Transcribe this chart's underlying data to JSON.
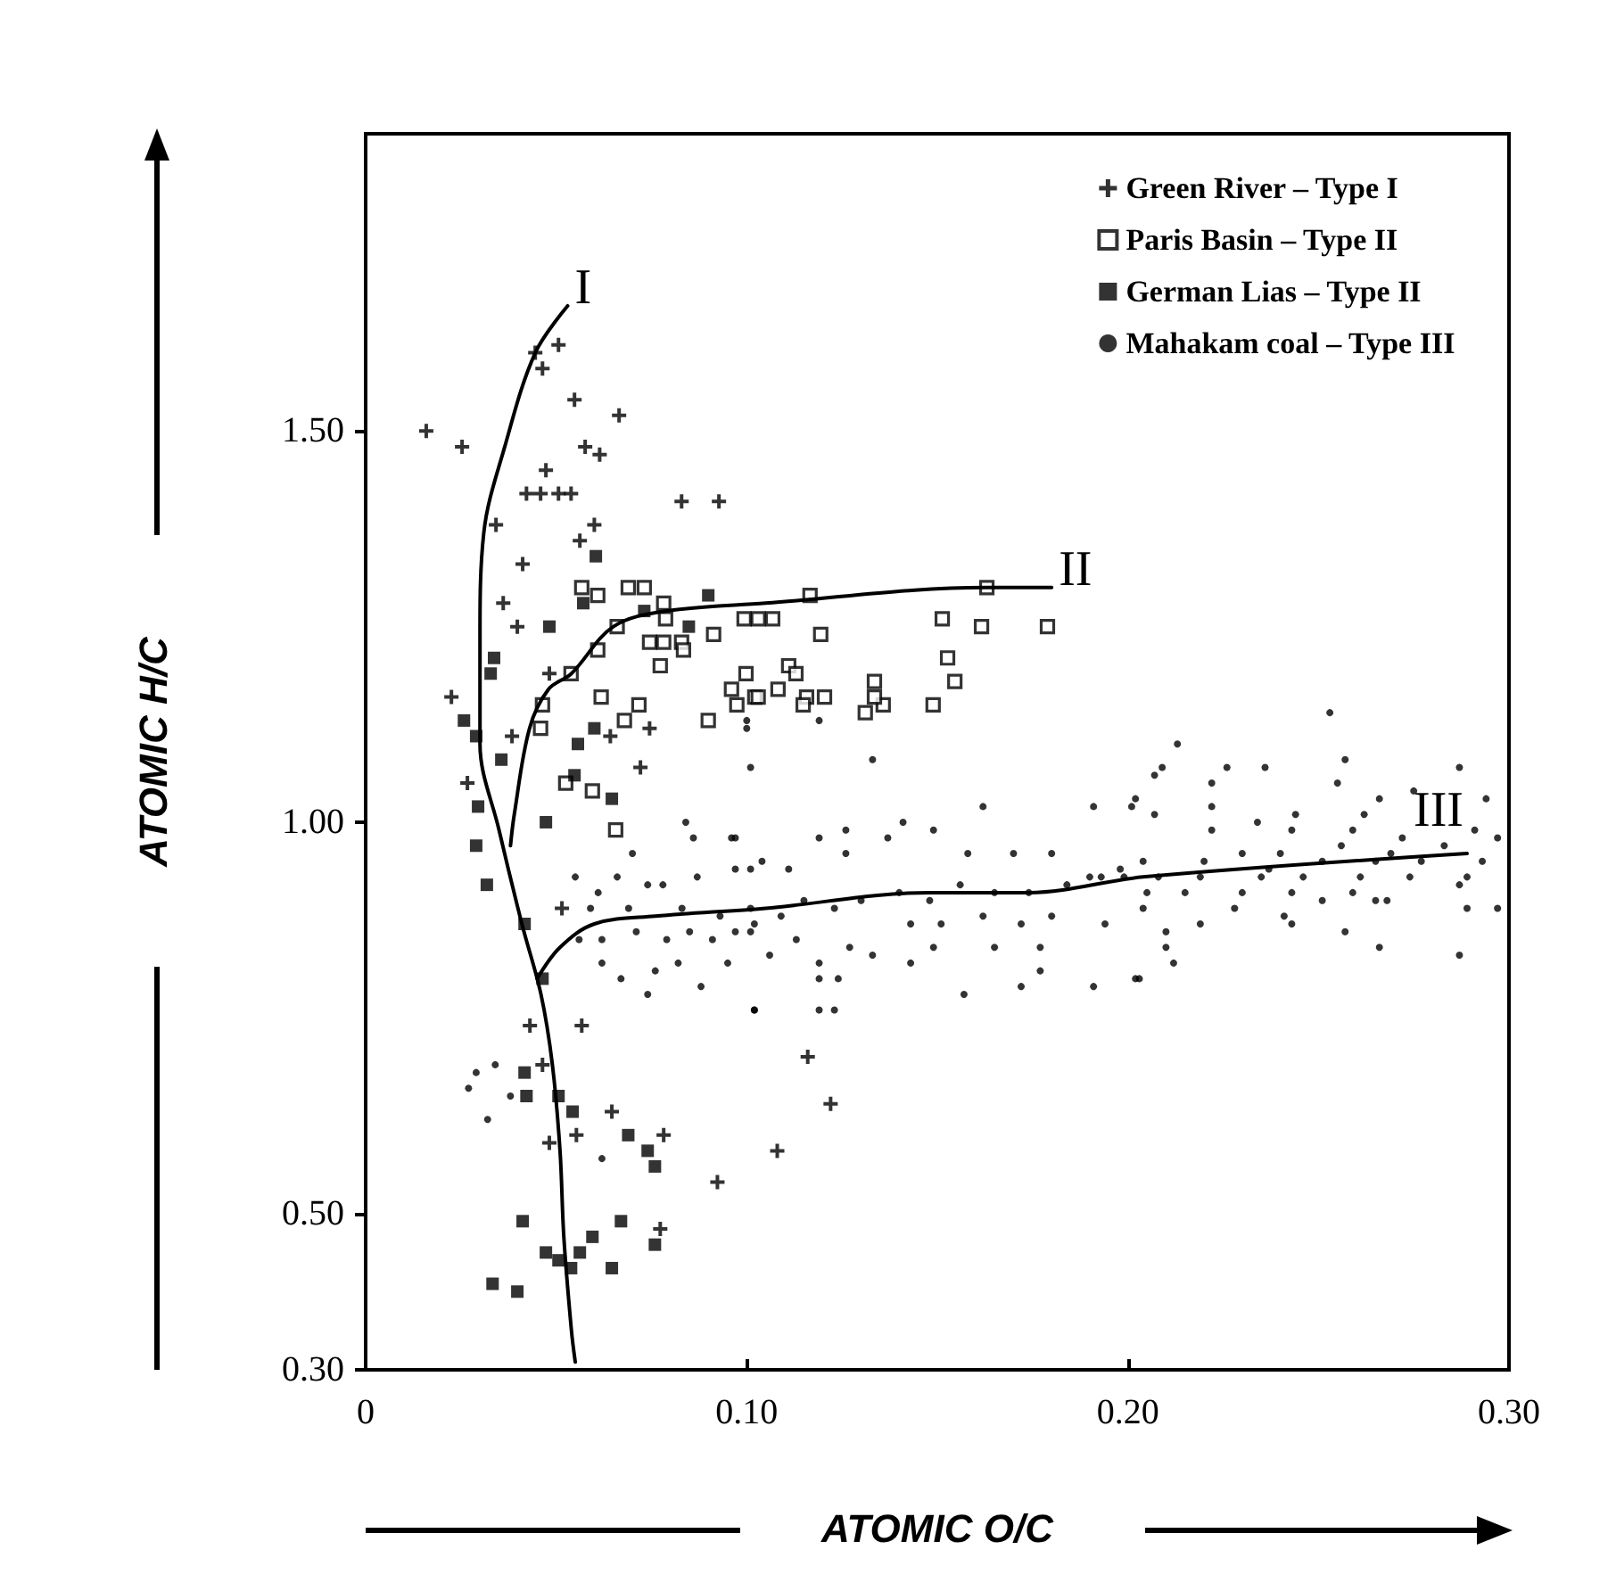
{
  "chart_data": {
    "type": "scatter",
    "xlabel": "ATOMIC O/C",
    "ylabel": "ATOMIC H/C",
    "xlim": [
      0,
      0.3
    ],
    "ylim": [
      0.3,
      1.88
    ],
    "xticks": [
      0,
      {
        "value": 0.1,
        "label": "0.10"
      },
      {
        "value": 0.2,
        "label": "0.20"
      },
      {
        "value": 0.3,
        "label": "0.30"
      }
    ],
    "yticks": [
      {
        "value": 0.3,
        "label": "0.30"
      },
      {
        "value": 0.5,
        "label": "0.50"
      },
      {
        "value": 1,
        "label": "1.00"
      },
      {
        "value": 1.5,
        "label": "1.50"
      }
    ],
    "grid": false,
    "legend": "top right",
    "series": [
      {
        "name": "Green River – Type I",
        "color": "#000000",
        "marker": "cross",
        "x": [
          0.0506,
          0.0464,
          0.0445,
          0.0548,
          0.0665,
          0.0159,
          0.0253,
          0.0576,
          0.0614,
          0.0473,
          0.0422,
          0.0459,
          0.0506,
          0.0539,
          0.0829,
          0.0927,
          0.0342,
          0.06,
          0.0562,
          0.0412,
          0.0361,
          0.0398,
          0.0482,
          0.0225,
          0.0384,
          0.0642,
          0.0745,
          0.0721,
          0.0267,
          0.0515,
          0.0567,
          0.0431,
          0.0646,
          0.0553,
          0.0782,
          0.0482,
          0.0923,
          0.0773,
          0.0464,
          0.116,
          0.122,
          0.108
        ],
        "values": [
          1.61,
          1.58,
          1.6,
          1.54,
          1.52,
          1.5,
          1.48,
          1.48,
          1.47,
          1.45,
          1.42,
          1.42,
          1.42,
          1.42,
          1.41,
          1.41,
          1.38,
          1.38,
          1.36,
          1.33,
          1.28,
          1.25,
          1.19,
          1.16,
          1.11,
          1.11,
          1.12,
          1.07,
          1.05,
          0.89,
          0.74,
          0.74,
          0.63,
          0.6,
          0.6,
          0.59,
          0.54,
          0.48,
          0.69,
          0.7,
          0.64,
          0.58
        ]
      },
      {
        "name": "Paris Basin – Type II",
        "color": "#000000",
        "marker": "square-open",
        "x": [
          0.0567,
          0.0609,
          0.0689,
          0.0731,
          0.0782,
          0.066,
          0.0787,
          0.0745,
          0.0782,
          0.0829,
          0.0913,
          0.0834,
          0.0773,
          0.0609,
          0.0539,
          0.0464,
          0.0459,
          0.0618,
          0.0717,
          0.0679,
          0.0899,
          0.096,
          0.0998,
          0.1021,
          0.0525,
          0.0595,
          0.0656,
          0.1166,
          0.163,
          0.0993,
          0.103,
          0.1068,
          0.1194,
          0.1513,
          0.1616,
          0.1789,
          0.111,
          0.1129,
          0.1527,
          0.1546,
          0.1335,
          0.103,
          0.1082,
          0.1157,
          0.1204,
          0.1148,
          0.1311,
          0.1358,
          0.1335,
          0.1489,
          0.0974
        ],
        "values": [
          1.3,
          1.29,
          1.3,
          1.3,
          1.28,
          1.25,
          1.26,
          1.23,
          1.23,
          1.23,
          1.24,
          1.22,
          1.2,
          1.22,
          1.19,
          1.15,
          1.12,
          1.16,
          1.15,
          1.13,
          1.13,
          1.17,
          1.19,
          1.16,
          1.05,
          1.04,
          0.99,
          1.29,
          1.3,
          1.26,
          1.26,
          1.26,
          1.24,
          1.26,
          1.25,
          1.25,
          1.2,
          1.19,
          1.21,
          1.18,
          1.18,
          1.16,
          1.17,
          1.16,
          1.16,
          1.15,
          1.14,
          1.15,
          1.16,
          1.15,
          1.15
        ]
      },
      {
        "name": "German Lias – Type II",
        "color": "#000000",
        "marker": "square",
        "x": [
          0.0604,
          0.0571,
          0.0482,
          0.0731,
          0.0899,
          0.0848,
          0.0337,
          0.0328,
          0.0258,
          0.029,
          0.06,
          0.0557,
          0.0356,
          0.0548,
          0.0646,
          0.0295,
          0.0473,
          0.029,
          0.0318,
          0.0417,
          0.0464,
          0.0417,
          0.0422,
          0.0506,
          0.0543,
          0.0689,
          0.074,
          0.0759,
          0.0412,
          0.067,
          0.0595,
          0.0473,
          0.0562,
          0.0539,
          0.0646,
          0.0759,
          0.0333,
          0.0398,
          0.0506
        ],
        "values": [
          1.34,
          1.28,
          1.25,
          1.27,
          1.29,
          1.25,
          1.21,
          1.19,
          1.13,
          1.11,
          1.12,
          1.1,
          1.08,
          1.06,
          1.03,
          1.02,
          1,
          0.97,
          0.92,
          0.87,
          0.8,
          0.68,
          0.65,
          0.65,
          0.63,
          0.6,
          0.58,
          0.56,
          0.49,
          0.49,
          0.47,
          0.45,
          0.45,
          0.43,
          0.43,
          0.46,
          0.41,
          0.4,
          0.44
        ]
      },
      {
        "name": "Mahakam coal – Type III",
        "color": "#000000",
        "marker": "circle",
        "x": [
          0.084,
          0.086,
          0.096,
          0.07,
          0.055,
          0.061,
          0.066,
          0.074,
          0.078,
          0.087,
          0.097,
          0.101,
          0.059,
          0.069,
          0.083,
          0.093,
          0.102,
          0.056,
          0.062,
          0.071,
          0.079,
          0.085,
          0.091,
          0.097,
          0.062,
          0.067,
          0.076,
          0.082,
          0.088,
          0.095,
          0.102,
          0.029,
          0.034,
          0.027,
          0.032,
          0.038,
          0.062,
          0.074,
          0.1,
          0.1,
          0.119,
          0.101,
          0.133,
          0.162,
          0.141,
          0.191,
          0.201,
          0.119,
          0.126,
          0.097,
          0.104,
          0.111,
          0.126,
          0.137,
          0.149,
          0.158,
          0.17,
          0.18,
          0.19,
          0.198,
          0.101,
          0.109,
          0.115,
          0.123,
          0.13,
          0.14,
          0.148,
          0.156,
          0.165,
          0.174,
          0.184,
          0.193,
          0.101,
          0.113,
          0.127,
          0.143,
          0.151,
          0.162,
          0.172,
          0.18,
          0.194,
          0.106,
          0.119,
          0.133,
          0.149,
          0.165,
          0.177,
          0.119,
          0.124,
          0.143,
          0.157,
          0.172,
          0.177,
          0.191,
          0.202,
          0.102,
          0.119,
          0.123,
          0.253,
          0.213,
          0.257,
          0.226,
          0.236,
          0.287,
          0.207,
          0.209,
          0.222,
          0.255,
          0.202,
          0.222,
          0.266,
          0.275,
          0.294,
          0.207,
          0.244,
          0.262,
          0.222,
          0.234,
          0.243,
          0.259,
          0.272,
          0.291,
          0.297,
          0.23,
          0.24,
          0.256,
          0.269,
          0.283,
          0.204,
          0.22,
          0.237,
          0.251,
          0.265,
          0.277,
          0.293,
          0.199,
          0.208,
          0.219,
          0.235,
          0.246,
          0.261,
          0.274,
          0.289,
          0.205,
          0.215,
          0.23,
          0.243,
          0.259,
          0.268,
          0.287,
          0.204,
          0.219,
          0.228,
          0.241,
          0.251,
          0.265,
          0.289,
          0.297,
          0.21,
          0.243,
          0.257,
          0.21,
          0.266,
          0.212,
          0.203,
          0.287
        ],
        "values": [
          1,
          0.98,
          0.98,
          0.96,
          0.93,
          0.91,
          0.93,
          0.92,
          0.92,
          0.93,
          0.94,
          0.94,
          0.89,
          0.89,
          0.89,
          0.88,
          0.87,
          0.85,
          0.85,
          0.86,
          0.85,
          0.86,
          0.85,
          0.86,
          0.82,
          0.8,
          0.81,
          0.82,
          0.79,
          0.82,
          0.76,
          0.68,
          0.69,
          0.66,
          0.62,
          0.65,
          0.57,
          0.78,
          1.13,
          1.12,
          1.13,
          1.07,
          1.08,
          1.02,
          1,
          1.02,
          1.02,
          0.98,
          0.99,
          0.98,
          0.95,
          0.94,
          0.96,
          0.98,
          0.99,
          0.96,
          0.96,
          0.96,
          0.93,
          0.94,
          0.89,
          0.88,
          0.9,
          0.89,
          0.9,
          0.91,
          0.9,
          0.92,
          0.91,
          0.91,
          0.92,
          0.93,
          0.86,
          0.85,
          0.84,
          0.87,
          0.87,
          0.88,
          0.87,
          0.88,
          0.87,
          0.83,
          0.82,
          0.83,
          0.84,
          0.84,
          0.84,
          0.8,
          0.8,
          0.82,
          0.78,
          0.79,
          0.81,
          0.79,
          0.8,
          0.76,
          0.76,
          0.76,
          1.14,
          1.1,
          1.08,
          1.07,
          1.07,
          1.07,
          1.06,
          1.07,
          1.05,
          1.05,
          1.03,
          1.02,
          1.03,
          1.04,
          1.03,
          1.01,
          1.01,
          1.01,
          0.99,
          1,
          0.99,
          0.99,
          0.98,
          0.99,
          0.98,
          0.96,
          0.96,
          0.97,
          0.96,
          0.97,
          0.95,
          0.95,
          0.94,
          0.95,
          0.95,
          0.95,
          0.95,
          0.93,
          0.93,
          0.93,
          0.93,
          0.93,
          0.93,
          0.93,
          0.93,
          0.91,
          0.91,
          0.91,
          0.91,
          0.91,
          0.9,
          0.92,
          0.89,
          0.87,
          0.89,
          0.88,
          0.9,
          0.9,
          0.89,
          0.89,
          0.86,
          0.87,
          0.86,
          0.84,
          0.84,
          0.82,
          0.8,
          0.83
        ]
      },
      {
        "type": "line",
        "name": "I",
        "color": "#000000",
        "marker": "none",
        "line_style": "solid",
        "x": [
          0.055,
          0.054,
          0.052,
          0.051,
          0.049,
          0.046,
          0.041,
          0.035,
          0.03,
          0.03,
          0.031,
          0.0365,
          0.0445,
          0.053
        ],
        "values": [
          0.31,
          0.35,
          0.47,
          0.58,
          0.69,
          0.78,
          0.87,
          0.99,
          1.1,
          1.24,
          1.37,
          1.48,
          1.6,
          1.66
        ]
      },
      {
        "type": "line",
        "name": "II",
        "color": "#000000",
        "marker": "none",
        "line_style": "solid",
        "x": [
          0.038,
          0.039,
          0.043,
          0.048,
          0.054,
          0.065,
          0.079,
          0.105,
          0.163,
          0.18
        ],
        "values": [
          0.97,
          1.01,
          1.12,
          1.17,
          1.19,
          1.25,
          1.27,
          1.28,
          1.3,
          1.3
        ]
      },
      {
        "type": "line",
        "name": "III",
        "color": "#000000",
        "marker": "none",
        "line_style": "solid",
        "x": [
          0.045,
          0.051,
          0.06,
          0.076,
          0.105,
          0.148,
          0.174,
          0.204,
          0.289
        ],
        "values": [
          0.8,
          0.84,
          0.87,
          0.88,
          0.89,
          0.91,
          0.91,
          0.93,
          0.96
        ]
      }
    ]
  }
}
